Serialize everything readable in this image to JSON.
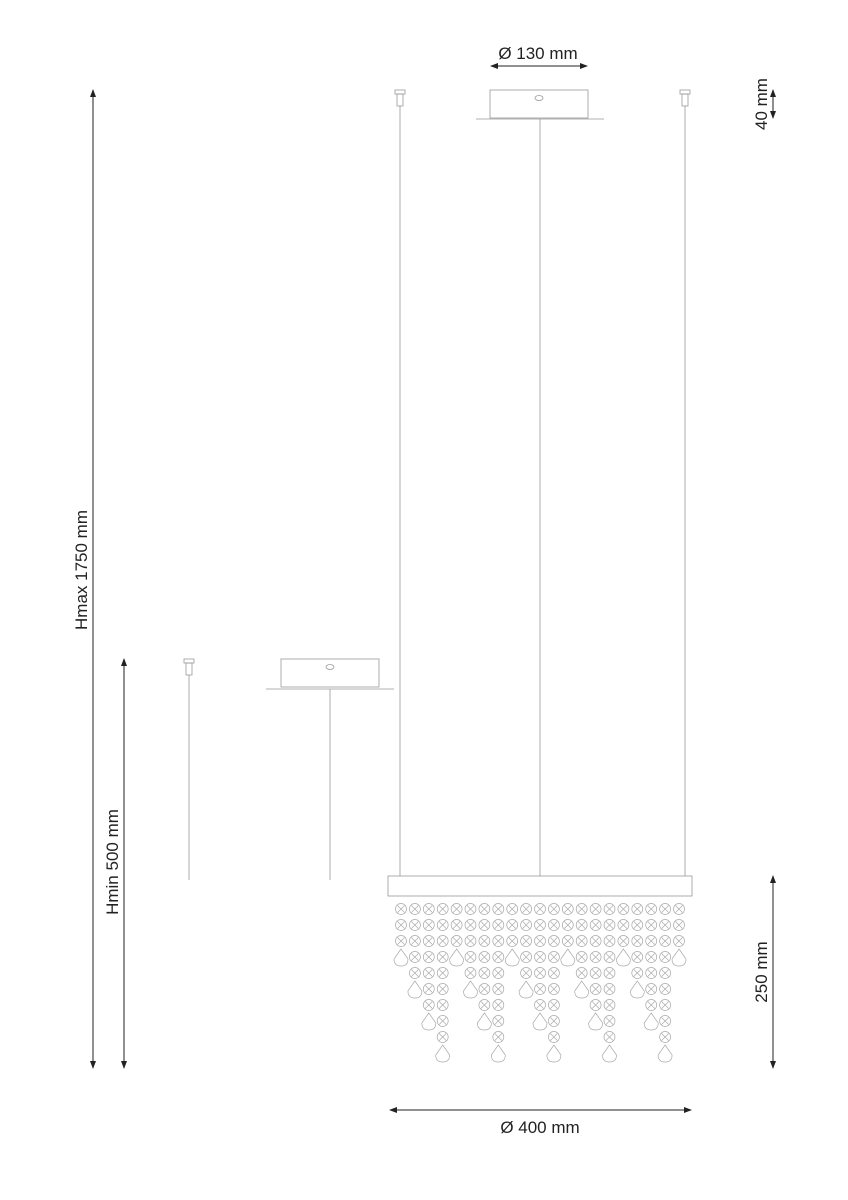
{
  "dimensions": {
    "canopy_diameter": "Ø 130 mm",
    "canopy_height": "40 mm",
    "max_height": "Hmax 1750 mm",
    "min_height": "Hmin 500 mm",
    "crystal_height": "250 mm",
    "fixture_diameter": "Ø 400 mm"
  },
  "colors": {
    "line": "#999999",
    "dimension": "#222222"
  }
}
